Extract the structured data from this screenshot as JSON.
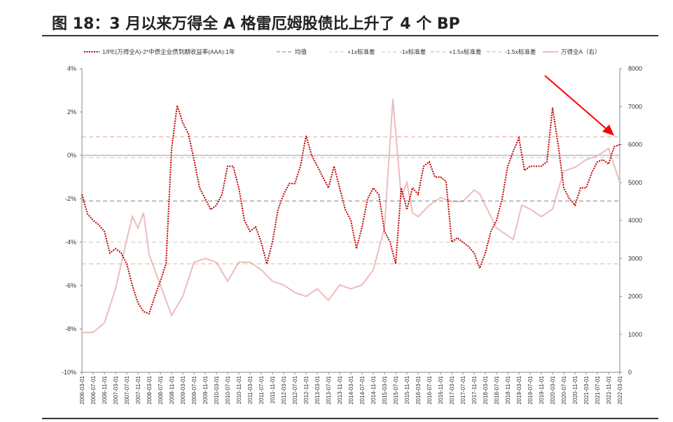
{
  "title": "图 18：3 月以来万得全 A 格雷厄姆股债比上升了 4 个 BP",
  "chart_data": {
    "type": "line",
    "title": "",
    "legend": [
      "1/PE(万得全A)-2*中债企业债到期收益率(AAA):1年",
      "均值",
      "+1x标准差",
      "-1x标准差",
      "+1.5x标准差",
      "-1.5x标准差",
      "万得全A（右）"
    ],
    "legend_placement": "top",
    "y_left": {
      "min": -10,
      "max": 4,
      "ticks": [
        "4%",
        "2%",
        "0%",
        "-2%",
        "-4%",
        "-6%",
        "-8%",
        "-10%"
      ]
    },
    "y_right": {
      "min": 0,
      "max": 8000,
      "ticks": [
        "8000",
        "7000",
        "6000",
        "5000",
        "4000",
        "3000",
        "2000",
        "1000",
        "0"
      ]
    },
    "x_ticks": [
      "2006-03-01",
      "2006-07-01",
      "2006-11-01",
      "2007-03-01",
      "2007-07-01",
      "2007-11-01",
      "2008-03-01",
      "2008-07-01",
      "2008-11-01",
      "2009-03-01",
      "2009-07-01",
      "2009-11-01",
      "2010-03-01",
      "2010-07-01",
      "2010-11-01",
      "2011-03-01",
      "2011-07-01",
      "2011-11-01",
      "2012-03-01",
      "2012-07-01",
      "2012-11-01",
      "2013-03-01",
      "2013-07-01",
      "2013-11-01",
      "2014-03-01",
      "2014-07-01",
      "2014-11-01",
      "2015-03-01",
      "2015-07-01",
      "2015-11-01",
      "2016-03-01",
      "2016-07-01",
      "2016-11-01",
      "2017-03-01",
      "2017-07-01",
      "2017-11-01",
      "2018-03-01",
      "2018-07-01",
      "2018-11-01",
      "2019-03-01",
      "2019-07-01",
      "2019-11-01",
      "2020-03-01",
      "2020-07-01",
      "2020-11-01",
      "2021-03-01",
      "2021-07-01",
      "2021-11-01",
      "2022-03-01"
    ],
    "levels": {
      "mean": -2.1,
      "plus1": -0.1,
      "minus1": -4.0,
      "plus15": 0.85,
      "minus15": -5.0
    },
    "colors": {
      "spread": "#c00000",
      "mean": "#808080",
      "sd1": "#c8c8c8",
      "sd15": "#e0b090",
      "index": "#eebcbc",
      "arrow": "#ff0000"
    },
    "spread": [
      [
        "2006-03",
        -1.8
      ],
      [
        "2006-05",
        -2.7
      ],
      [
        "2006-07",
        -3.0
      ],
      [
        "2006-09",
        -3.2
      ],
      [
        "2006-11",
        -3.5
      ],
      [
        "2007-01",
        -4.5
      ],
      [
        "2007-03",
        -4.3
      ],
      [
        "2007-05",
        -4.5
      ],
      [
        "2007-07",
        -5.0
      ],
      [
        "2007-09",
        -6.0
      ],
      [
        "2007-11",
        -6.8
      ],
      [
        "2008-01",
        -7.2
      ],
      [
        "2008-03",
        -7.3
      ],
      [
        "2008-05",
        -6.5
      ],
      [
        "2008-07",
        -5.8
      ],
      [
        "2008-09",
        -5.0
      ],
      [
        "2008-11",
        0.3
      ],
      [
        "2009-01",
        2.3
      ],
      [
        "2009-03",
        1.5
      ],
      [
        "2009-05",
        1.0
      ],
      [
        "2009-07",
        -0.2
      ],
      [
        "2009-09",
        -1.5
      ],
      [
        "2009-11",
        -2.0
      ],
      [
        "2010-01",
        -2.5
      ],
      [
        "2010-03",
        -2.3
      ],
      [
        "2010-05",
        -1.8
      ],
      [
        "2010-07",
        -0.5
      ],
      [
        "2010-09",
        -0.5
      ],
      [
        "2010-11",
        -1.5
      ],
      [
        "2011-01",
        -3.0
      ],
      [
        "2011-03",
        -3.5
      ],
      [
        "2011-05",
        -3.3
      ],
      [
        "2011-07",
        -4.0
      ],
      [
        "2011-09",
        -5.0
      ],
      [
        "2011-11",
        -4.0
      ],
      [
        "2012-01",
        -2.5
      ],
      [
        "2012-03",
        -1.8
      ],
      [
        "2012-05",
        -1.3
      ],
      [
        "2012-07",
        -1.3
      ],
      [
        "2012-09",
        -0.5
      ],
      [
        "2012-11",
        0.9
      ],
      [
        "2013-01",
        0
      ],
      [
        "2013-03",
        -0.5
      ],
      [
        "2013-05",
        -1.0
      ],
      [
        "2013-07",
        -1.5
      ],
      [
        "2013-09",
        -0.5
      ],
      [
        "2013-11",
        -1.5
      ],
      [
        "2014-01",
        -2.5
      ],
      [
        "2014-03",
        -3.0
      ],
      [
        "2014-05",
        -4.3
      ],
      [
        "2014-07",
        -3.3
      ],
      [
        "2014-09",
        -2.0
      ],
      [
        "2014-11",
        -1.5
      ],
      [
        "2015-01",
        -1.8
      ],
      [
        "2015-03",
        -3.5
      ],
      [
        "2015-05",
        -4.0
      ],
      [
        "2015-07",
        -5.0
      ],
      [
        "2015-09",
        -1.5
      ],
      [
        "2015-11",
        -2.5
      ],
      [
        "2016-01",
        -1.5
      ],
      [
        "2016-03",
        -1.8
      ],
      [
        "2016-05",
        -0.5
      ],
      [
        "2016-07",
        -0.3
      ],
      [
        "2016-09",
        -1.0
      ],
      [
        "2016-11",
        -1.0
      ],
      [
        "2017-01",
        -1.2
      ],
      [
        "2017-03",
        -4.0
      ],
      [
        "2017-05",
        -3.8
      ],
      [
        "2017-07",
        -4.0
      ],
      [
        "2017-09",
        -4.2
      ],
      [
        "2017-11",
        -4.5
      ],
      [
        "2018-01",
        -5.2
      ],
      [
        "2018-03",
        -4.5
      ],
      [
        "2018-05",
        -3.5
      ],
      [
        "2018-07",
        -3.0
      ],
      [
        "2018-09",
        -2.0
      ],
      [
        "2018-11",
        -0.5
      ],
      [
        "2019-01",
        0.2
      ],
      [
        "2019-03",
        0.8
      ],
      [
        "2019-05",
        -0.7
      ],
      [
        "2019-07",
        -0.5
      ],
      [
        "2019-09",
        -0.5
      ],
      [
        "2019-11",
        -0.5
      ],
      [
        "2020-01",
        -0.3
      ],
      [
        "2020-03",
        2.2
      ],
      [
        "2020-05",
        0.5
      ],
      [
        "2020-07",
        -1.5
      ],
      [
        "2020-09",
        -2.0
      ],
      [
        "2020-11",
        -2.3
      ],
      [
        "2021-01",
        -1.5
      ],
      [
        "2021-03",
        -1.5
      ],
      [
        "2021-05",
        -0.8
      ],
      [
        "2021-07",
        -0.3
      ],
      [
        "2021-09",
        -0.2
      ],
      [
        "2021-11",
        -0.4
      ],
      [
        "2022-01",
        0.4
      ],
      [
        "2022-03",
        0.5
      ]
    ],
    "index": [
      [
        "2006-03",
        1050
      ],
      [
        "2006-07",
        1050
      ],
      [
        "2006-11",
        1300
      ],
      [
        "2007-03",
        2200
      ],
      [
        "2007-07",
        3500
      ],
      [
        "2007-09",
        4100
      ],
      [
        "2007-11",
        3800
      ],
      [
        "2008-01",
        4200
      ],
      [
        "2008-03",
        3100
      ],
      [
        "2008-07",
        2300
      ],
      [
        "2008-11",
        1500
      ],
      [
        "2009-03",
        2000
      ],
      [
        "2009-07",
        2900
      ],
      [
        "2009-11",
        3000
      ],
      [
        "2010-03",
        2900
      ],
      [
        "2010-07",
        2400
      ],
      [
        "2010-11",
        2900
      ],
      [
        "2011-03",
        2900
      ],
      [
        "2011-07",
        2700
      ],
      [
        "2011-11",
        2400
      ],
      [
        "2012-03",
        2300
      ],
      [
        "2012-07",
        2100
      ],
      [
        "2012-11",
        2000
      ],
      [
        "2013-03",
        2200
      ],
      [
        "2013-07",
        1900
      ],
      [
        "2013-11",
        2300
      ],
      [
        "2014-03",
        2200
      ],
      [
        "2014-07",
        2300
      ],
      [
        "2014-11",
        2700
      ],
      [
        "2015-03",
        3800
      ],
      [
        "2015-06",
        7200
      ],
      [
        "2015-09",
        4600
      ],
      [
        "2015-11",
        5000
      ],
      [
        "2016-01",
        4200
      ],
      [
        "2016-03",
        4100
      ],
      [
        "2016-07",
        4400
      ],
      [
        "2016-11",
        4600
      ],
      [
        "2017-03",
        4500
      ],
      [
        "2017-07",
        4500
      ],
      [
        "2017-11",
        4800
      ],
      [
        "2018-01",
        4700
      ],
      [
        "2018-03",
        4400
      ],
      [
        "2018-07",
        3800
      ],
      [
        "2018-11",
        3600
      ],
      [
        "2019-01",
        3500
      ],
      [
        "2019-04",
        4400
      ],
      [
        "2019-07",
        4300
      ],
      [
        "2019-11",
        4100
      ],
      [
        "2020-03",
        4300
      ],
      [
        "2020-07",
        5300
      ],
      [
        "2020-11",
        5400
      ],
      [
        "2021-03",
        5600
      ],
      [
        "2021-07",
        5700
      ],
      [
        "2021-11",
        5900
      ],
      [
        "2022-03",
        5000
      ]
    ]
  }
}
